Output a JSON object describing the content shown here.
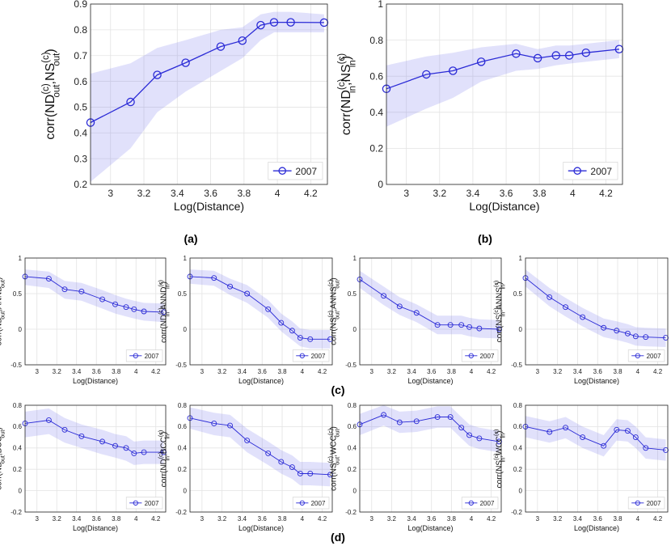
{
  "captions": [
    "(a)",
    "(b)",
    "(c)",
    "(d)"
  ],
  "chart_data": [
    {
      "id": "a",
      "type": "line",
      "x": [
        2.88,
        3.12,
        3.28,
        3.45,
        3.66,
        3.79,
        3.9,
        3.98,
        4.08,
        4.28
      ],
      "values": [
        0.44,
        0.52,
        0.625,
        0.672,
        0.735,
        0.758,
        0.818,
        0.829,
        0.829,
        0.828
      ],
      "lower": [
        0.21,
        0.34,
        0.48,
        0.56,
        0.64,
        0.69,
        0.76,
        0.79,
        0.79,
        0.79
      ],
      "upper": [
        0.63,
        0.67,
        0.73,
        0.76,
        0.8,
        0.81,
        0.86,
        0.87,
        0.87,
        0.86
      ],
      "xlabel": "Log(Distance)",
      "ylabel": "corr(ND^{(c)}_{out},NS^{(c)}_{out})",
      "xlim": [
        2.88,
        4.3
      ],
      "ylim": [
        0.2,
        0.9
      ],
      "xticks": [
        "3",
        "3.2",
        "3.4",
        "3.6",
        "3.8",
        "4",
        "4.2"
      ],
      "yticks": [
        "0.2",
        "0.3",
        "0.4",
        "0.5",
        "0.6",
        "0.7",
        "0.8",
        "0.9"
      ],
      "legend": "2007",
      "legend_position": "bottom-right"
    },
    {
      "id": "b",
      "type": "line",
      "x": [
        2.88,
        3.12,
        3.28,
        3.45,
        3.66,
        3.79,
        3.9,
        3.98,
        4.08,
        4.28
      ],
      "values": [
        0.53,
        0.61,
        0.63,
        0.68,
        0.725,
        0.7,
        0.715,
        0.715,
        0.73,
        0.75
      ],
      "lower": [
        0.32,
        0.42,
        0.48,
        0.57,
        0.63,
        0.64,
        0.66,
        0.67,
        0.68,
        0.7
      ],
      "upper": [
        0.66,
        0.71,
        0.73,
        0.76,
        0.78,
        0.75,
        0.77,
        0.77,
        0.78,
        0.8
      ],
      "xlabel": "Log(Distance)",
      "ylabel": "corr(ND^{(c)}_{in},NS^{(c)}_{in})",
      "xlim": [
        2.88,
        4.3
      ],
      "ylim": [
        0,
        1
      ],
      "xticks": [
        "3",
        "3.2",
        "3.4",
        "3.6",
        "3.8",
        "4",
        "4.2"
      ],
      "yticks": [
        "0",
        "0.2",
        "0.4",
        "0.6",
        "0.8",
        "1"
      ],
      "legend": "2007",
      "legend_position": "bottom-right"
    },
    {
      "id": "c1",
      "type": "line",
      "x": [
        2.88,
        3.12,
        3.28,
        3.45,
        3.66,
        3.79,
        3.9,
        3.98,
        4.08,
        4.28
      ],
      "values": [
        0.74,
        0.71,
        0.56,
        0.53,
        0.42,
        0.35,
        0.31,
        0.28,
        0.25,
        0.24
      ],
      "lower": [
        0.62,
        0.58,
        0.43,
        0.4,
        0.29,
        0.22,
        0.18,
        0.15,
        0.12,
        0.1
      ],
      "upper": [
        0.84,
        0.81,
        0.68,
        0.65,
        0.55,
        0.48,
        0.43,
        0.4,
        0.37,
        0.36
      ],
      "xlabel": "Log(Distance)",
      "ylabel": "corr(ND^{(c)}_{out},ANND^{(c)}_{out})",
      "xlim": [
        2.88,
        4.3
      ],
      "ylim": [
        -0.5,
        1
      ],
      "xticks": [
        "3",
        "3.2",
        "3.4",
        "3.6",
        "3.8",
        "4",
        "4.2"
      ],
      "yticks": [
        "-0.5",
        "0",
        "0.5",
        "1"
      ],
      "legend": "2007",
      "legend_position": "bottom-right"
    },
    {
      "id": "c2",
      "type": "line",
      "x": [
        2.88,
        3.12,
        3.28,
        3.45,
        3.66,
        3.79,
        3.9,
        3.98,
        4.08,
        4.28
      ],
      "values": [
        0.74,
        0.72,
        0.6,
        0.5,
        0.28,
        0.09,
        -0.02,
        -0.12,
        -0.14,
        -0.14
      ],
      "lower": [
        0.64,
        0.61,
        0.48,
        0.37,
        0.16,
        -0.03,
        -0.15,
        -0.24,
        -0.27,
        -0.27
      ],
      "upper": [
        0.84,
        0.82,
        0.71,
        0.62,
        0.41,
        0.22,
        0.11,
        0.01,
        -0.01,
        -0.01
      ],
      "xlabel": "Log(Distance)",
      "ylabel": "corr(ND^{(c)}_{in},ANND^{(c)}_{in})",
      "xlim": [
        2.88,
        4.3
      ],
      "ylim": [
        -0.5,
        1
      ],
      "xticks": [
        "3",
        "3.2",
        "3.4",
        "3.6",
        "3.8",
        "4",
        "4.2"
      ],
      "yticks": [
        "-0.5",
        "0",
        "0.5",
        "1"
      ],
      "legend": "2007",
      "legend_position": "bottom-right"
    },
    {
      "id": "c3",
      "type": "line",
      "x": [
        2.88,
        3.12,
        3.28,
        3.45,
        3.66,
        3.79,
        3.9,
        3.98,
        4.08,
        4.28
      ],
      "values": [
        0.7,
        0.47,
        0.32,
        0.23,
        0.06,
        0.06,
        0.06,
        0.03,
        0.01,
        0.0
      ],
      "lower": [
        0.58,
        0.34,
        0.2,
        0.1,
        -0.07,
        -0.07,
        -0.07,
        -0.1,
        -0.12,
        -0.13
      ],
      "upper": [
        0.82,
        0.6,
        0.45,
        0.35,
        0.19,
        0.19,
        0.19,
        0.16,
        0.14,
        0.13
      ],
      "xlabel": "Log(Distance)",
      "ylabel": "corr(NS^{(c)}_{out},ANNS^{(c)}_{out})",
      "xlim": [
        2.88,
        4.3
      ],
      "ylim": [
        -0.5,
        1
      ],
      "xticks": [
        "3",
        "3.2",
        "3.4",
        "3.6",
        "3.8",
        "4",
        "4.2"
      ],
      "yticks": [
        "-0.5",
        "0",
        "0.5",
        "1"
      ],
      "legend": "2007",
      "legend_position": "bottom-right"
    },
    {
      "id": "c4",
      "type": "line",
      "x": [
        2.88,
        3.12,
        3.28,
        3.45,
        3.66,
        3.79,
        3.9,
        3.98,
        4.08,
        4.28
      ],
      "values": [
        0.72,
        0.45,
        0.31,
        0.17,
        0.02,
        -0.02,
        -0.06,
        -0.1,
        -0.11,
        -0.12
      ],
      "lower": [
        0.6,
        0.32,
        0.18,
        0.04,
        -0.11,
        -0.15,
        -0.19,
        -0.23,
        -0.24,
        -0.25
      ],
      "upper": [
        0.84,
        0.58,
        0.44,
        0.3,
        0.15,
        0.11,
        0.07,
        0.03,
        0.02,
        0.01
      ],
      "xlabel": "Log(Distance)",
      "ylabel": "corr(NS^{(c)}_{in},ANNS^{(c)}_{in})",
      "xlim": [
        2.88,
        4.3
      ],
      "ylim": [
        -0.5,
        1
      ],
      "xticks": [
        "3",
        "3.2",
        "3.4",
        "3.6",
        "3.8",
        "4",
        "4.2"
      ],
      "yticks": [
        "-0.5",
        "0",
        "0.5",
        "1"
      ],
      "legend": "2007",
      "legend_position": "bottom-right"
    },
    {
      "id": "d1",
      "type": "line",
      "x": [
        2.88,
        3.12,
        3.28,
        3.45,
        3.66,
        3.79,
        3.9,
        3.98,
        4.08,
        4.28
      ],
      "values": [
        0.63,
        0.66,
        0.57,
        0.51,
        0.46,
        0.42,
        0.4,
        0.35,
        0.36,
        0.36
      ],
      "lower": [
        0.5,
        0.53,
        0.45,
        0.4,
        0.34,
        0.31,
        0.28,
        0.24,
        0.25,
        0.25
      ],
      "upper": [
        0.74,
        0.77,
        0.68,
        0.62,
        0.57,
        0.53,
        0.51,
        0.46,
        0.47,
        0.47
      ],
      "xlabel": "Log(Distance)",
      "ylabel": "corr(ND^{(c)}_{out},BCC^{(c)}_{out})",
      "xlim": [
        2.88,
        4.3
      ],
      "ylim": [
        -0.2,
        0.8
      ],
      "xticks": [
        "3",
        "3.2",
        "3.4",
        "3.6",
        "3.8",
        "4",
        "4.2"
      ],
      "yticks": [
        "-0.2",
        "0",
        "0.2",
        "0.4",
        "0.6",
        "0.8"
      ],
      "legend": "2007",
      "legend_position": "bottom-right"
    },
    {
      "id": "d2",
      "type": "line",
      "x": [
        2.88,
        3.12,
        3.28,
        3.45,
        3.66,
        3.79,
        3.9,
        3.98,
        4.08,
        4.28
      ],
      "values": [
        0.68,
        0.63,
        0.61,
        0.47,
        0.35,
        0.27,
        0.22,
        0.16,
        0.16,
        0.15
      ],
      "lower": [
        0.58,
        0.52,
        0.5,
        0.36,
        0.24,
        0.16,
        0.11,
        0.05,
        0.05,
        0.04
      ],
      "upper": [
        0.78,
        0.73,
        0.71,
        0.58,
        0.46,
        0.38,
        0.33,
        0.27,
        0.27,
        0.26
      ],
      "xlabel": "Log(Distance)",
      "ylabel": "corr(ND^{(c)}_{in},BCC^{(c)}_{in})",
      "xlim": [
        2.88,
        4.3
      ],
      "ylim": [
        -0.2,
        0.8
      ],
      "xticks": [
        "3",
        "3.2",
        "3.4",
        "3.6",
        "3.8",
        "4",
        "4.2"
      ],
      "yticks": [
        "-0.2",
        "0",
        "0.2",
        "0.4",
        "0.6",
        "0.8"
      ],
      "legend": "2007",
      "legend_position": "bottom-right"
    },
    {
      "id": "d3",
      "type": "line",
      "x": [
        2.88,
        3.12,
        3.28,
        3.45,
        3.66,
        3.79,
        3.9,
        3.98,
        4.08,
        4.28
      ],
      "values": [
        0.62,
        0.71,
        0.64,
        0.65,
        0.69,
        0.69,
        0.59,
        0.52,
        0.49,
        0.46
      ],
      "lower": [
        0.52,
        0.61,
        0.54,
        0.55,
        0.59,
        0.59,
        0.49,
        0.42,
        0.39,
        0.36
      ],
      "upper": [
        0.72,
        0.8,
        0.74,
        0.75,
        0.79,
        0.79,
        0.69,
        0.62,
        0.59,
        0.56
      ],
      "xlabel": "Log(Distance)",
      "ylabel": "corr(NS^{(c)}_{out},WCC^{(c)}_{out})",
      "xlim": [
        2.88,
        4.3
      ],
      "ylim": [
        -0.2,
        0.8
      ],
      "xticks": [
        "3",
        "3.2",
        "3.4",
        "3.6",
        "3.8",
        "4",
        "4.2"
      ],
      "yticks": [
        "-0.2",
        "0",
        "0.2",
        "0.4",
        "0.6",
        "0.8"
      ],
      "legend": "2007",
      "legend_position": "bottom-right"
    },
    {
      "id": "d4",
      "type": "line",
      "x": [
        2.88,
        3.12,
        3.28,
        3.45,
        3.66,
        3.79,
        3.9,
        3.98,
        4.08,
        4.28
      ],
      "values": [
        0.6,
        0.55,
        0.59,
        0.5,
        0.42,
        0.57,
        0.56,
        0.5,
        0.4,
        0.38
      ],
      "lower": [
        0.5,
        0.45,
        0.49,
        0.4,
        0.32,
        0.47,
        0.46,
        0.4,
        0.3,
        0.28
      ],
      "upper": [
        0.7,
        0.65,
        0.69,
        0.6,
        0.52,
        0.67,
        0.66,
        0.6,
        0.5,
        0.48
      ],
      "xlabel": "Log(Distance)",
      "ylabel": "corr(NS^{(c)}_{in},WCC^{(c)}_{in})",
      "xlim": [
        2.88,
        4.3
      ],
      "ylim": [
        -0.2,
        0.8
      ],
      "xticks": [
        "3",
        "3.2",
        "3.4",
        "3.6",
        "3.8",
        "4",
        "4.2"
      ],
      "yticks": [
        "-0.2",
        "0",
        "0.2",
        "0.4",
        "0.6",
        "0.8"
      ],
      "legend": "2007",
      "legend_position": "bottom-right"
    }
  ]
}
